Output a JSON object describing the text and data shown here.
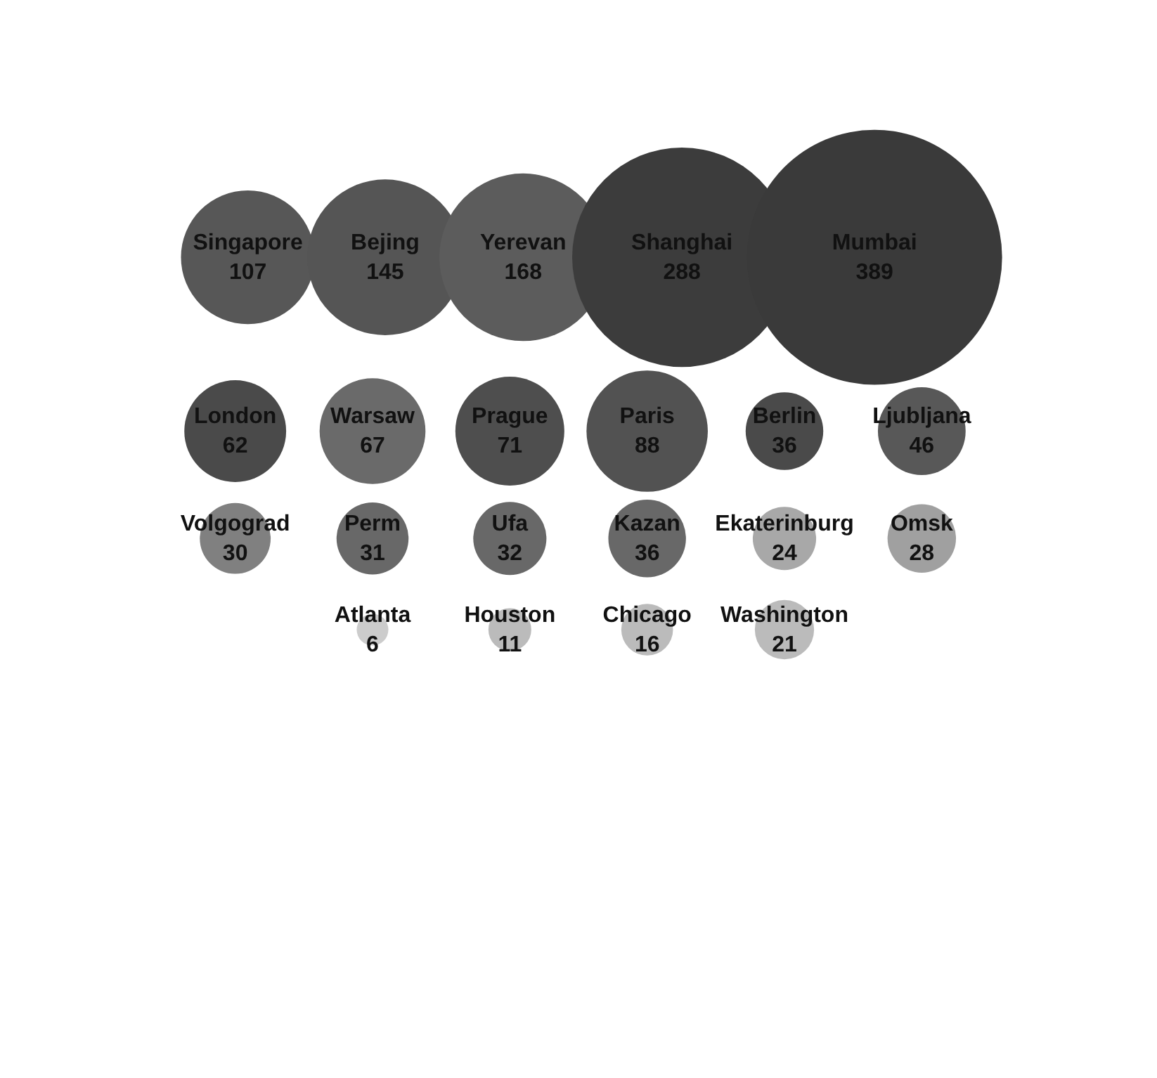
{
  "chart_data": {
    "type": "other",
    "categories": [
      "Singapore",
      "Bejing",
      "Yerevan",
      "Shanghai",
      "Mumbai",
      "London",
      "Warsaw",
      "Prague",
      "Paris",
      "Berlin",
      "Ljubljana",
      "Volgograd",
      "Perm",
      "Ufa",
      "Kazan",
      "Ekaterinburg",
      "Omsk",
      "Atlanta",
      "Houston",
      "Chicago",
      "Washington"
    ],
    "values": [
      107,
      145,
      168,
      288,
      389,
      62,
      67,
      71,
      88,
      36,
      46,
      30,
      31,
      32,
      36,
      24,
      28,
      6,
      11,
      16,
      21
    ],
    "colors": [
      "#575757",
      "#555555",
      "#5c5c5c",
      "#3c3c3c",
      "#3a3a3a",
      "#4a4a4a",
      "#6a6a6a",
      "#4e4e4e",
      "#525252",
      "#4a4a4a",
      "#585858",
      "#808080",
      "#686868",
      "#686868",
      "#686868",
      "#a8a8a8",
      "#a0a0a0",
      "#cccccc",
      "#bbbbbb",
      "#bbbbbb",
      "#bbbbbb"
    ],
    "data_labels": true
  }
}
